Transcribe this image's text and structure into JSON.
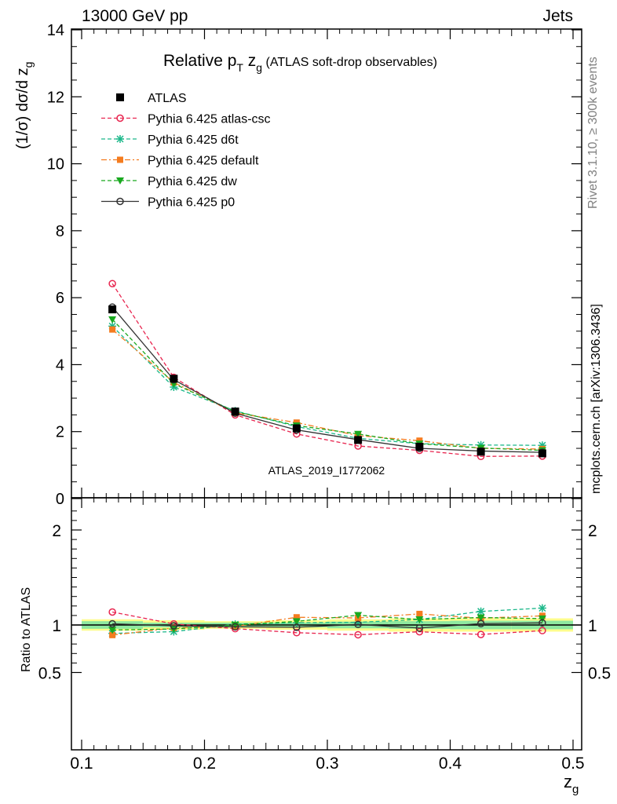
{
  "header": {
    "energy_label": "13000 GeV pp",
    "process_label": "Jets"
  },
  "side_labels": {
    "rivet": "Rivet 3.1.10, ≥ 300k events",
    "mcplots": "mcplots.cern.ch [arXiv:1306.3436]"
  },
  "chart_data": {
    "type": "line",
    "title_main": "Relative p",
    "title_sub1": "T",
    "title_mid": " z",
    "title_sub2": "g",
    "title_tail": " (ATLAS soft-drop observables)",
    "ylabel": "(1/σ) dσ/d z",
    "ylabel_sub": "g",
    "ratio_ylabel": "Ratio to ATLAS",
    "xlabel": "z",
    "xlabel_sub": "g",
    "watermark": "ATLAS_2019_I1772062",
    "xlim": [
      0.1,
      0.5
    ],
    "ylim": [
      0,
      14
    ],
    "ratio_ylim": [
      0.35,
      2.3
    ],
    "x_ticks": [
      "0.1",
      "0.2",
      "0.3",
      "0.4",
      "0.5"
    ],
    "y_ticks": [
      "0",
      "2",
      "4",
      "6",
      "8",
      "10",
      "12",
      "14"
    ],
    "ratio_ticks": [
      "0.5",
      "1",
      "2"
    ],
    "bin_edges": [
      0.1,
      0.15,
      0.2,
      0.25,
      0.3,
      0.35,
      0.4,
      0.45,
      0.5
    ],
    "x": [
      0.125,
      0.175,
      0.225,
      0.275,
      0.325,
      0.375,
      0.425,
      0.475
    ],
    "data": {
      "name": "ATLAS",
      "values": [
        5.65,
        3.58,
        2.6,
        2.1,
        1.75,
        1.55,
        1.4,
        1.35
      ],
      "band_outer": [
        0.06,
        0.05,
        0.04,
        0.05,
        0.06,
        0.07,
        0.07,
        0.07
      ],
      "band_inner": [
        0.04,
        0.025,
        0.025,
        0.025,
        0.035,
        0.04,
        0.045,
        0.045
      ]
    },
    "series": [
      {
        "name": "Pythia 6.425 atlas-csc",
        "color": "#e8254f",
        "marker": "circle-open",
        "dash": "5,3",
        "values": [
          6.42,
          3.62,
          2.5,
          1.93,
          1.57,
          1.44,
          1.26,
          1.27
        ]
      },
      {
        "name": "Pythia 6.425 d6t",
        "color": "#1cb88a",
        "marker": "star",
        "dash": "5,3",
        "values": [
          5.15,
          3.33,
          2.62,
          2.15,
          1.8,
          1.64,
          1.6,
          1.59
        ]
      },
      {
        "name": "Pythia 6.425 default",
        "color": "#f47c1f",
        "marker": "square",
        "dash": "7,3,2,3",
        "values": [
          5.05,
          3.47,
          2.56,
          2.27,
          1.88,
          1.73,
          1.5,
          1.48
        ]
      },
      {
        "name": "Pythia 6.425 dw",
        "color": "#19a91f",
        "marker": "triangle-down",
        "dash": "5,3",
        "values": [
          5.35,
          3.43,
          2.6,
          2.18,
          1.93,
          1.64,
          1.51,
          1.44
        ]
      },
      {
        "name": "Pythia 6.425 p0",
        "color": "#333333",
        "marker": "circle-open",
        "dash": "",
        "values": [
          5.72,
          3.55,
          2.55,
          2.05,
          1.76,
          1.5,
          1.42,
          1.38
        ]
      }
    ],
    "data_marker_color": "#000000",
    "band_colors": {
      "outer": "#fdfd8c",
      "inner": "#8ee9a0"
    }
  }
}
